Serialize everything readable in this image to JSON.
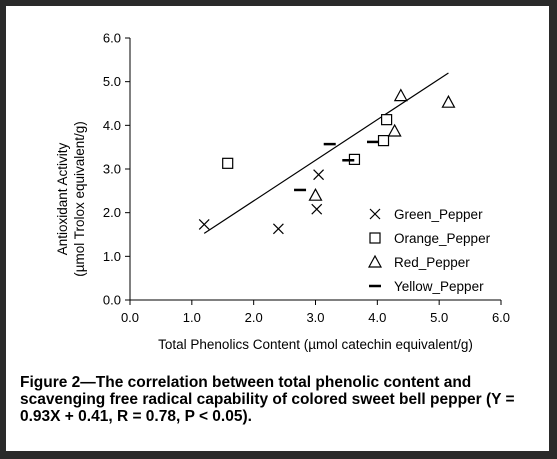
{
  "chart_data": {
    "type": "scatter",
    "xlabel": "Total Phenolics Content (µmol catechin equivalent/g)",
    "ylabel_line1": "Antioxidant Activity",
    "ylabel_line2": "(µmol Trolox equivalent/g)",
    "xlim": [
      0,
      6
    ],
    "ylim": [
      0,
      6
    ],
    "x_ticks": [
      "0.0",
      "1.0",
      "2.0",
      "3.0",
      "4.0",
      "5.0",
      "6.0"
    ],
    "y_ticks": [
      "0.0",
      "1.0",
      "2.0",
      "3.0",
      "4.0",
      "5.0",
      "6.0"
    ],
    "grid": false,
    "legend_position": "right",
    "series": [
      {
        "name": "Green_Pepper",
        "marker": "cross",
        "points": [
          [
            1.2,
            1.73
          ],
          [
            2.4,
            1.63
          ],
          [
            3.02,
            2.08
          ],
          [
            3.05,
            2.87
          ]
        ]
      },
      {
        "name": "Orange_Pepper",
        "marker": "square",
        "points": [
          [
            1.58,
            3.13
          ],
          [
            3.63,
            3.22
          ],
          [
            4.1,
            3.65
          ],
          [
            4.15,
            4.13
          ]
        ]
      },
      {
        "name": "Red_Pepper",
        "marker": "triangle",
        "points": [
          [
            3.0,
            2.4
          ],
          [
            4.28,
            3.87
          ],
          [
            4.38,
            4.68
          ],
          [
            5.15,
            4.53
          ]
        ]
      },
      {
        "name": "Yellow_Pepper",
        "marker": "dash",
        "points": [
          [
            2.75,
            2.52
          ],
          [
            3.23,
            3.57
          ],
          [
            3.53,
            3.2
          ],
          [
            3.93,
            3.62
          ]
        ]
      }
    ],
    "trendline": {
      "slope": 0.93,
      "intercept": 0.41,
      "x_range": [
        1.2,
        5.15
      ]
    }
  },
  "caption": "Figure 2—The correlation between total phenolic content and scavenging free radical capability of colored sweet bell pepper (Y = 0.93X + 0.41, R = 0.78, P < 0.05)."
}
